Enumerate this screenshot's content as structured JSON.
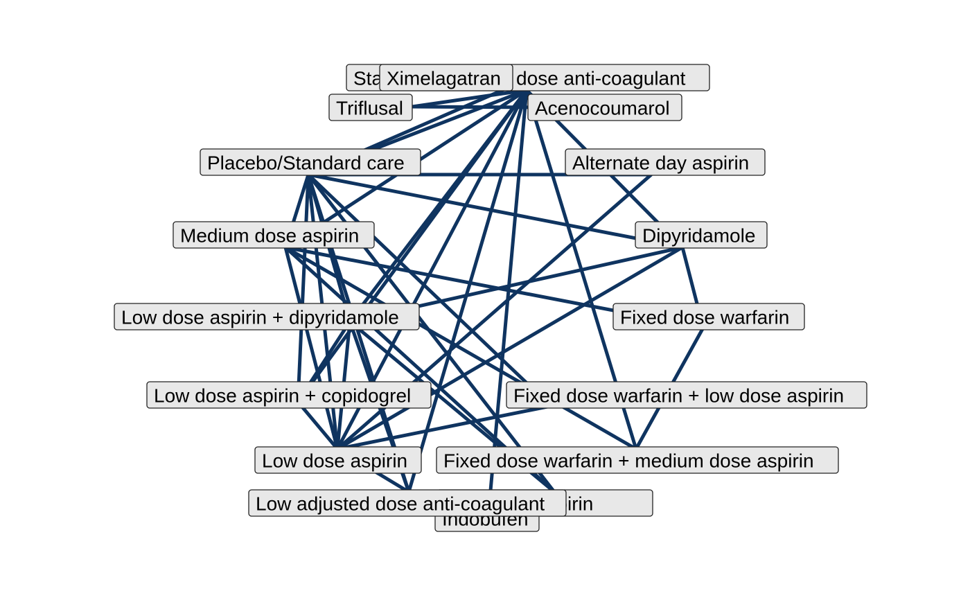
{
  "diagram": {
    "type": "network",
    "nodes": [
      {
        "id": "standard_adjusted",
        "label": "Standard adjusted dose anti-coagulant"
      },
      {
        "id": "ximelagatran",
        "label": "Ximelagatran"
      },
      {
        "id": "triflusal",
        "label": "Triflusal"
      },
      {
        "id": "acenocoumarol",
        "label": "Acenocoumarol"
      },
      {
        "id": "placebo",
        "label": "Placebo/Standard care"
      },
      {
        "id": "alternate_aspirin",
        "label": "Alternate day aspirin"
      },
      {
        "id": "medium_aspirin",
        "label": "Medium dose aspirin"
      },
      {
        "id": "dipyridamole",
        "label": "Dipyridamole"
      },
      {
        "id": "low_aspirin_dipy",
        "label": "Low dose aspirin + dipyridamole"
      },
      {
        "id": "fixed_warfarin",
        "label": "Fixed dose warfarin"
      },
      {
        "id": "low_aspirin_copi",
        "label": "Low dose aspirin + copidogrel"
      },
      {
        "id": "fixed_warfarin_low",
        "label": "Fixed dose warfarin + low dose aspirin"
      },
      {
        "id": "low_aspirin",
        "label": "Low dose aspirin"
      },
      {
        "id": "fixed_warfarin_medium",
        "label": "Fixed dose warfarin + medium dose aspirin"
      },
      {
        "id": "high_aspirin",
        "label": "High dose aspirin"
      },
      {
        "id": "indobufen",
        "label": "Indobufen"
      },
      {
        "id": "low_adjusted",
        "label": "Low adjusted dose anti-coagulant"
      }
    ],
    "edges": [
      [
        "standard_adjusted",
        "triflusal"
      ],
      [
        "standard_adjusted",
        "placebo"
      ],
      [
        "standard_adjusted",
        "medium_aspirin"
      ],
      [
        "standard_adjusted",
        "low_aspirin_dipy"
      ],
      [
        "standard_adjusted",
        "low_aspirin_copi"
      ],
      [
        "standard_adjusted",
        "low_aspirin"
      ],
      [
        "standard_adjusted",
        "low_adjusted"
      ],
      [
        "standard_adjusted",
        "indobufen"
      ],
      [
        "standard_adjusted",
        "dipyridamole"
      ],
      [
        "standard_adjusted",
        "fixed_warfarin_medium"
      ],
      [
        "ximelagatran",
        "placebo"
      ],
      [
        "ximelagatran",
        "acenocoumarol"
      ],
      [
        "triflusal",
        "acenocoumarol"
      ],
      [
        "placebo",
        "alternate_aspirin"
      ],
      [
        "placebo",
        "dipyridamole"
      ],
      [
        "placebo",
        "medium_aspirin"
      ],
      [
        "placebo",
        "low_aspirin_dipy"
      ],
      [
        "placebo",
        "low_aspirin_copi"
      ],
      [
        "placebo",
        "low_aspirin"
      ],
      [
        "placebo",
        "low_adjusted"
      ],
      [
        "placebo",
        "high_aspirin"
      ],
      [
        "placebo",
        "fixed_warfarin_low"
      ],
      [
        "alternate_aspirin",
        "low_aspirin"
      ],
      [
        "dipyridamole",
        "low_aspirin_dipy"
      ],
      [
        "dipyridamole",
        "low_aspirin"
      ],
      [
        "dipyridamole",
        "fixed_warfarin"
      ],
      [
        "medium_aspirin",
        "fixed_warfarin"
      ],
      [
        "medium_aspirin",
        "fixed_warfarin_medium"
      ],
      [
        "medium_aspirin",
        "low_aspirin"
      ],
      [
        "medium_aspirin",
        "high_aspirin"
      ],
      [
        "low_aspirin_dipy",
        "low_aspirin_copi"
      ],
      [
        "low_aspirin_dipy",
        "low_aspirin"
      ],
      [
        "low_aspirin_dipy",
        "low_adjusted"
      ],
      [
        "low_aspirin_dipy",
        "high_aspirin"
      ],
      [
        "fixed_warfarin",
        "fixed_warfarin_medium"
      ],
      [
        "low_aspirin_copi",
        "low_aspirin"
      ],
      [
        "fixed_warfarin_low",
        "low_aspirin"
      ],
      [
        "low_aspirin",
        "low_adjusted"
      ]
    ],
    "edge_color": "#0f3460",
    "node_fill": "#e8e8e8"
  }
}
